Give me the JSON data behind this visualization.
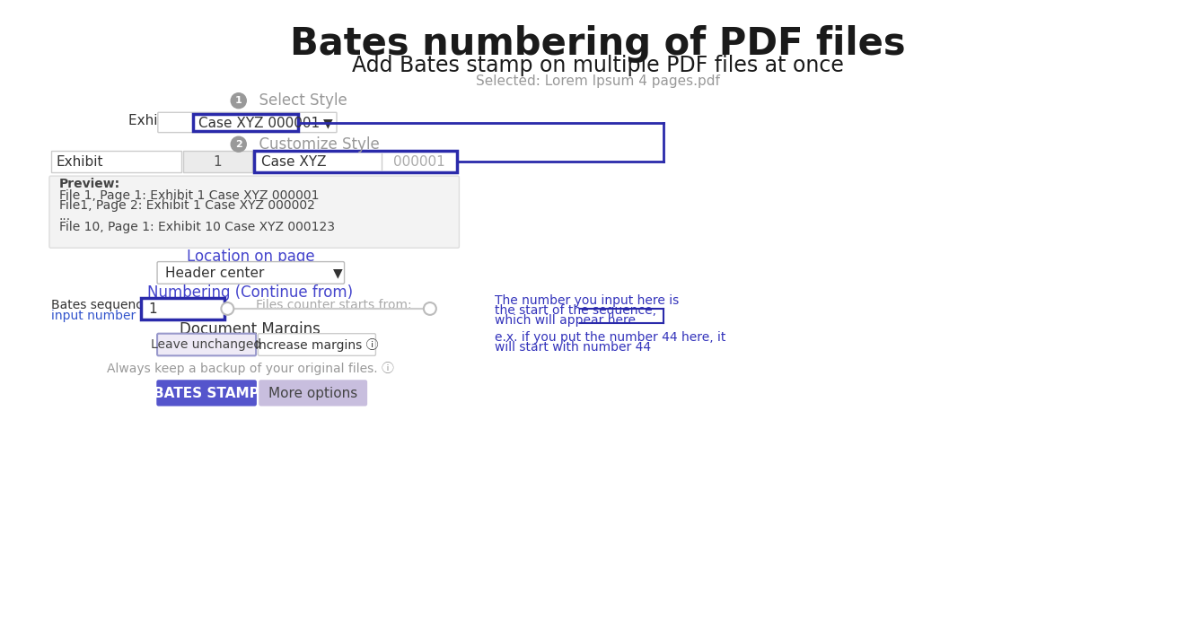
{
  "bg_color": "#ffffff",
  "title": "Bates numbering of PDF files",
  "subtitle": "Add Bates stamp on multiple PDF files at once",
  "selected_file": "Selected: Lorem Ipsum 4 pages.pdf",
  "field_exhibit": "Exhibit",
  "field_num": "1",
  "field_case": "Case XYZ",
  "field_seq": "000001",
  "exhibit_label": "Exhibit 1",
  "dropdown_text": "Case XYZ 000001",
  "preview_lines": [
    "Preview:",
    "File 1, Page 1: Exhibit 1 Case XYZ 000001",
    "File1, Page 2: Exhibit 1 Case XYZ 000002",
    "...",
    "File 10, Page 1: Exhibit 10 Case XYZ 000123"
  ],
  "location_label": "Location on page",
  "location_dropdown": "Header center",
  "numbering_label": "Numbering (Continue from)",
  "bates_seq_label": "Bates sequence starts from",
  "bates_seq_label2": "input number here:",
  "bates_field_val": "1",
  "files_counter_label": "Files counter starts from:",
  "margin_label": "Document Margins",
  "btn_leave": "Leave unchanged",
  "btn_increase": "Increase margins ⓘ",
  "backup_note": "Always keep a backup of your original files. ⓘ",
  "btn_stamp": "BATES STAMP",
  "btn_more": "More options",
  "annotation_line1": "The number you input here is",
  "annotation_line2": "the start of the sequence,",
  "annotation_line3": "which will appear here",
  "annotation_line4": "e.x. if you put the number 44 here, it",
  "annotation_line5": "will start with number 44",
  "color_blue_dark": "#2a2aaa",
  "color_blue_link": "#3355cc",
  "color_gray_text": "#999999",
  "color_gray_text2": "#aaaaaa",
  "color_preview_bg": "#f3f3f3",
  "color_btn_stamp": "#5555cc",
  "color_btn_more": "#c8bede",
  "color_annotation": "#3333bb",
  "color_location_label": "#4444cc",
  "color_numbering_label": "#4444cc",
  "color_step_circle": "#999999",
  "color_title": "#1a1a1a",
  "color_leave_btn_border": "#9999cc",
  "color_leave_btn_bg": "#eeeaf6"
}
